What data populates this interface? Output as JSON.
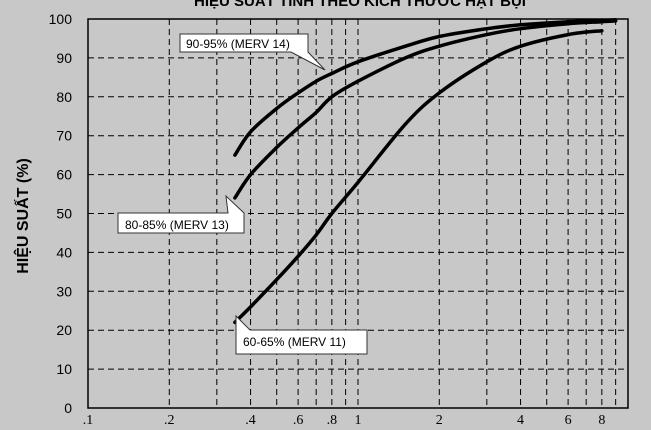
{
  "chart_data": {
    "type": "line",
    "title": "HIỆU SUẤT TÍNH THEO KÍCH THƯỚC HẠT BỤI",
    "xlabel": "",
    "ylabel": "HIỆU SUẤT (%)",
    "xscale": "log",
    "xlim": [
      0.1,
      10
    ],
    "ylim": [
      0,
      100
    ],
    "grid": true,
    "x_ticks": [
      {
        "value": 0.1,
        "label": ".1"
      },
      {
        "value": 0.2,
        "label": ".2"
      },
      {
        "value": 0.4,
        "label": ".4"
      },
      {
        "value": 0.6,
        "label": ".6"
      },
      {
        "value": 0.8,
        "label": ".8"
      },
      {
        "value": 1,
        "label": "1"
      },
      {
        "value": 2,
        "label": "2"
      },
      {
        "value": 4,
        "label": "4"
      },
      {
        "value": 6,
        "label": "6"
      },
      {
        "value": 8,
        "label": "8"
      }
    ],
    "x_minor_grid": [
      0.3,
      0.5,
      0.7,
      0.9,
      3,
      5,
      7,
      9
    ],
    "y_ticks": [
      0,
      10,
      20,
      30,
      40,
      50,
      60,
      70,
      80,
      90,
      100
    ],
    "series": [
      {
        "name": "90-95% (MERV 14)",
        "x": [
          0.35,
          0.4,
          0.5,
          0.6,
          0.7,
          0.8,
          1,
          1.5,
          2,
          3,
          4,
          6,
          8,
          9
        ],
        "y": [
          65,
          71,
          77,
          81,
          84,
          86,
          89,
          93,
          95.5,
          97.5,
          98.5,
          99.3,
          99.6,
          99.8
        ]
      },
      {
        "name": "80-85% (MERV 13)",
        "x": [
          0.35,
          0.4,
          0.5,
          0.6,
          0.7,
          0.8,
          1,
          1.5,
          2,
          3,
          4,
          6,
          8,
          9
        ],
        "y": [
          54,
          60,
          67,
          72,
          76,
          80,
          84,
          90,
          93,
          96,
          97.5,
          98.8,
          99.3,
          99.5
        ]
      },
      {
        "name": "60-65% (MERV 11)",
        "x": [
          0.35,
          0.4,
          0.5,
          0.6,
          0.7,
          0.8,
          1,
          1.5,
          2,
          3,
          4,
          6,
          8
        ],
        "y": [
          22,
          26,
          33,
          39,
          44.5,
          50,
          58,
          73,
          81,
          89,
          93,
          96,
          97
        ]
      }
    ]
  }
}
